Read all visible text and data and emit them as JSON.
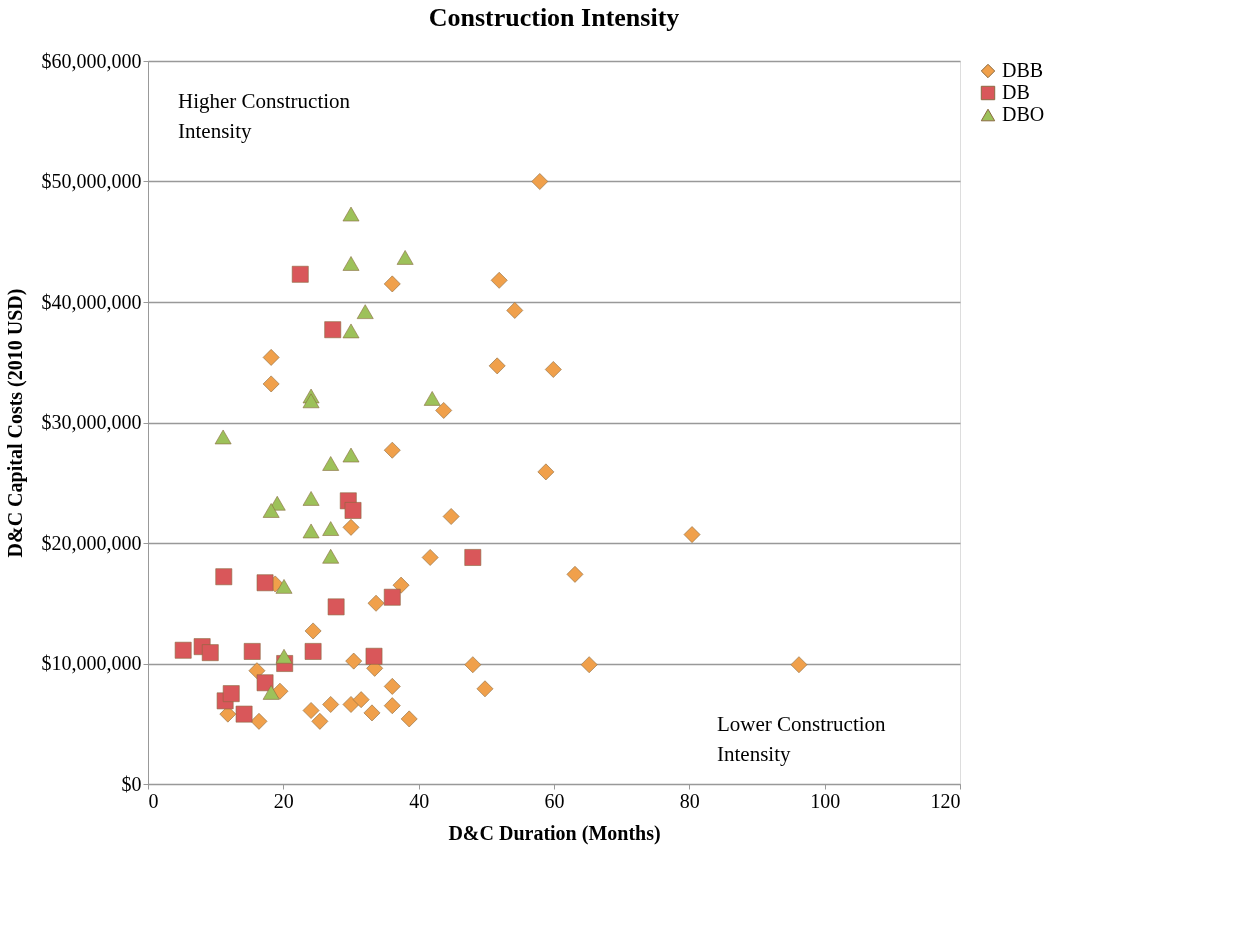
{
  "chart_data": {
    "type": "scatter",
    "title": "Construction Intensity",
    "xlabel": "D&C Duration (Months)",
    "ylabel": "D&C Capital Costs (2010 USD)",
    "xlim": [
      0,
      120
    ],
    "xticks": [
      0,
      20,
      40,
      60,
      80,
      100,
      120
    ],
    "ylim": [
      0,
      60000000
    ],
    "yticks": [
      {
        "value": 0,
        "label": "$0"
      },
      {
        "value": 10000000,
        "label": "$10,000,000"
      },
      {
        "value": 20000000,
        "label": "$20,000,000"
      },
      {
        "value": 30000000,
        "label": "$30,000,000"
      },
      {
        "value": 40000000,
        "label": "$40,000,000"
      },
      {
        "value": 50000000,
        "label": "$50,000,000"
      },
      {
        "value": 60000000,
        "label": "$60,000,000"
      }
    ],
    "grid": "y",
    "legend": "right",
    "annotations": [
      "Higher Construction Intensity",
      "Lower Construction Intensity"
    ],
    "series": [
      {
        "name": "DBB",
        "color": "#f0a04b",
        "marker": "diamond",
        "x": [
          57.9,
          36.1,
          51.9,
          54.2,
          18.2,
          18.2,
          51.6,
          59.9,
          43.7,
          36.1,
          58.8,
          44.8,
          30.0,
          41.7,
          18.8,
          37.4,
          33.7,
          24.4,
          30.4,
          33.5,
          48.0,
          49.8,
          16.1,
          19.5,
          36.1,
          11.8,
          16.4,
          24.1,
          25.4,
          27.0,
          30.0,
          31.5,
          33.1,
          36.1,
          38.6,
          80.4,
          63.1,
          65.2,
          96.2
        ],
        "values": [
          50000000,
          41500000,
          41800000,
          39300000,
          35400000,
          33200000,
          34700000,
          34400000,
          31000000,
          27700000,
          25900000,
          22200000,
          21300000,
          18800000,
          16600000,
          16500000,
          15000000,
          12700000,
          10200000,
          9600000,
          9900000,
          7900000,
          9400000,
          7700000,
          8100000,
          5800000,
          5200000,
          6100000,
          5200000,
          6600000,
          6600000,
          7000000,
          5900000,
          6500000,
          5400000,
          20700000,
          17400000,
          9900000,
          9900000
        ]
      },
      {
        "name": "DB",
        "color": "#d9575a",
        "marker": "square",
        "x": [
          22.5,
          27.3,
          29.6,
          30.3,
          48.0,
          11.2,
          17.3,
          36.1,
          27.8,
          5.2,
          8.0,
          9.2,
          15.4,
          24.4,
          20.2,
          33.4,
          17.3,
          11.4,
          12.3,
          14.2
        ],
        "values": [
          42300000,
          37700000,
          23500000,
          22700000,
          18800000,
          17200000,
          16700000,
          15500000,
          14700000,
          11100000,
          11400000,
          10900000,
          11000000,
          11000000,
          10000000,
          10600000,
          8400000,
          6900000,
          7500000,
          5800000
        ]
      },
      {
        "name": "DBO",
        "color": "#9dc15a",
        "marker": "triangle",
        "x": [
          30.0,
          30.0,
          38.0,
          32.1,
          30.0,
          24.1,
          24.1,
          42.0,
          11.1,
          30.0,
          27.0,
          19.1,
          18.2,
          24.1,
          24.1,
          27.0,
          27.0,
          20.1,
          20.1,
          18.2
        ],
        "values": [
          47300000,
          43200000,
          43700000,
          39200000,
          37600000,
          32200000,
          31800000,
          32000000,
          28800000,
          27300000,
          26600000,
          23300000,
          22700000,
          23700000,
          21000000,
          21200000,
          18900000,
          16400000,
          10600000,
          7600000
        ]
      }
    ]
  }
}
